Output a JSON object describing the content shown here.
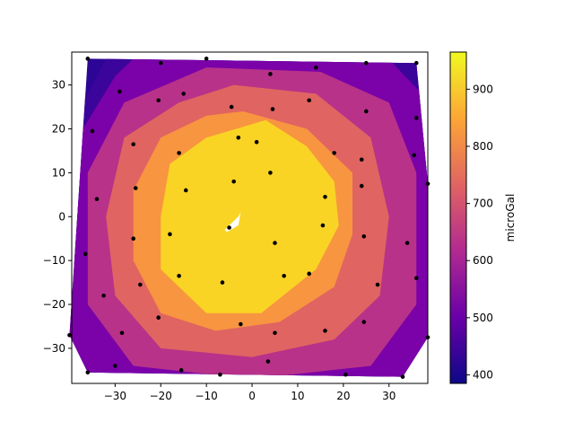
{
  "chart_data": {
    "type": "contour",
    "colorbar_label": "microGal",
    "colorbar_range": [
      385,
      965
    ],
    "colorbar_ticks": [
      400,
      500,
      600,
      700,
      800,
      900
    ],
    "colormap": [
      "#0d0887",
      "#6a00a8",
      "#b12a90",
      "#e16462",
      "#fca636",
      "#f0f921"
    ],
    "xlim": [
      -39.5,
      38.5
    ],
    "ylim": [
      -38.0,
      37.5
    ],
    "xticks": [
      -30,
      -20,
      -10,
      0,
      10,
      20,
      30
    ],
    "yticks": [
      -30,
      -20,
      -10,
      0,
      10,
      20,
      30
    ],
    "contour_levels": [
      {
        "level_low": 400,
        "level_high": 500,
        "color": "#3b049a"
      },
      {
        "level_low": 500,
        "level_high": 600,
        "color": "#7a02a8"
      },
      {
        "level_low": 600,
        "level_high": 700,
        "color": "#b83289"
      },
      {
        "level_low": 700,
        "level_high": 800,
        "color": "#e06461"
      },
      {
        "level_low": 800,
        "level_high": 900,
        "color": "#f89540"
      },
      {
        "level_low": 900,
        "level_high": 960,
        "color": "#f9d425"
      }
    ],
    "peak": {
      "x": -3,
      "y": -1
    },
    "stations": [
      {
        "x": -36,
        "y": 36
      },
      {
        "x": -20,
        "y": 35
      },
      {
        "x": -10,
        "y": 36
      },
      {
        "x": 4,
        "y": 32.5
      },
      {
        "x": 14,
        "y": 34
      },
      {
        "x": 25,
        "y": 35
      },
      {
        "x": 36,
        "y": 35
      },
      {
        "x": -29,
        "y": 28.5
      },
      {
        "x": -15,
        "y": 28
      },
      {
        "x": -20.5,
        "y": 26.5
      },
      {
        "x": -4.5,
        "y": 25
      },
      {
        "x": 4.5,
        "y": 24.5
      },
      {
        "x": 12.5,
        "y": 26.5
      },
      {
        "x": 25,
        "y": 24
      },
      {
        "x": 36,
        "y": 22.5
      },
      {
        "x": -35,
        "y": 19.5
      },
      {
        "x": -26,
        "y": 16.5
      },
      {
        "x": -3,
        "y": 18
      },
      {
        "x": 1,
        "y": 17
      },
      {
        "x": -16,
        "y": 14.5
      },
      {
        "x": 18,
        "y": 14.5
      },
      {
        "x": 24,
        "y": 13
      },
      {
        "x": 35.5,
        "y": 14
      },
      {
        "x": 4,
        "y": 10
      },
      {
        "x": -4,
        "y": 8
      },
      {
        "x": -25.5,
        "y": 6.5
      },
      {
        "x": -14.5,
        "y": 6
      },
      {
        "x": 24,
        "y": 7
      },
      {
        "x": 38.5,
        "y": 7.5
      },
      {
        "x": -34,
        "y": 4
      },
      {
        "x": 16,
        "y": 4.5
      },
      {
        "x": -5,
        "y": -2.5
      },
      {
        "x": 15.5,
        "y": -2
      },
      {
        "x": -26,
        "y": -5
      },
      {
        "x": -18,
        "y": -4
      },
      {
        "x": 5,
        "y": -6
      },
      {
        "x": 24.5,
        "y": -4.5
      },
      {
        "x": 34,
        "y": -6
      },
      {
        "x": -36.5,
        "y": -8.5
      },
      {
        "x": -16,
        "y": -13.5
      },
      {
        "x": 7,
        "y": -13.5
      },
      {
        "x": 12.5,
        "y": -13
      },
      {
        "x": 36,
        "y": -14
      },
      {
        "x": -6.5,
        "y": -15
      },
      {
        "x": -24.5,
        "y": -15.5
      },
      {
        "x": 27.5,
        "y": -15.5
      },
      {
        "x": -32.5,
        "y": -18
      },
      {
        "x": -20.5,
        "y": -23
      },
      {
        "x": 24.5,
        "y": -24
      },
      {
        "x": -2.5,
        "y": -24.5
      },
      {
        "x": -28.5,
        "y": -26.5
      },
      {
        "x": 5,
        "y": -26.5
      },
      {
        "x": 16,
        "y": -26
      },
      {
        "x": -40,
        "y": -27
      },
      {
        "x": 38.5,
        "y": -27.5
      },
      {
        "x": 3.5,
        "y": -33
      },
      {
        "x": -30,
        "y": -34
      },
      {
        "x": -15.5,
        "y": -35
      },
      {
        "x": -7,
        "y": -36
      },
      {
        "x": -36,
        "y": -35.5
      },
      {
        "x": 20.5,
        "y": -36
      },
      {
        "x": 33,
        "y": -36.5
      }
    ]
  }
}
